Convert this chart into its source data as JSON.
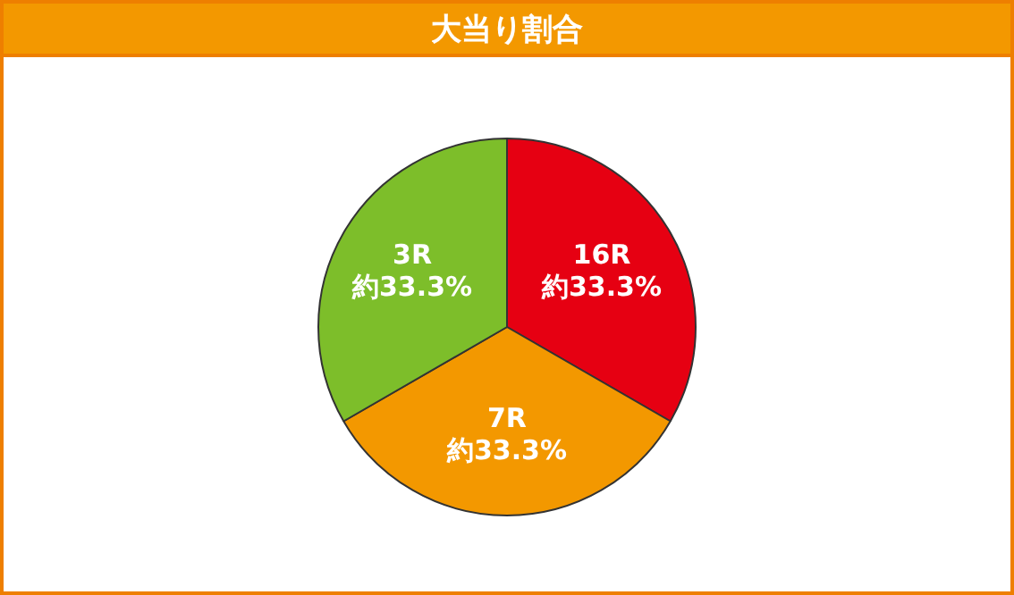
{
  "chart_data": {
    "type": "pie",
    "title": "大当り割合",
    "categories": [
      "16R",
      "7R",
      "3R"
    ],
    "values": [
      33.3,
      33.3,
      33.3
    ],
    "value_labels": [
      "約33.3%",
      "約33.3%",
      "約33.3%"
    ],
    "colors": [
      "#e60012",
      "#f39800",
      "#7dbe2a"
    ],
    "legend": false
  }
}
